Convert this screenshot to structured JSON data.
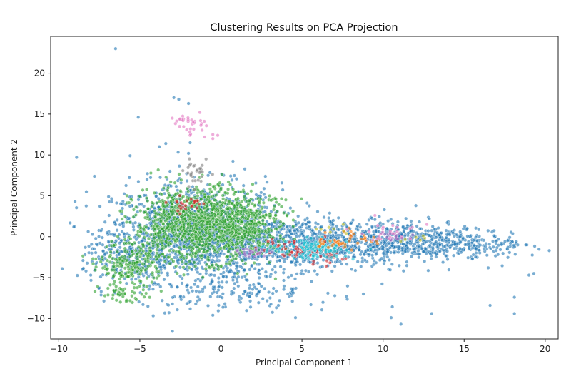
{
  "chart_data": {
    "type": "scatter",
    "title": "Clustering Results on PCA Projection",
    "xlabel": "Principal Component 1",
    "ylabel": "Principal Component 2",
    "xlim": [
      -10.5,
      20.8
    ],
    "ylim": [
      -12.5,
      24.5
    ],
    "xticks": [
      -10,
      -5,
      0,
      5,
      10,
      15,
      20
    ],
    "yticks": [
      -10,
      -5,
      0,
      5,
      10,
      15,
      20
    ],
    "grid": false,
    "legend": "none",
    "clusters": [
      {
        "color": "#1f77b4",
        "regions": [
          {
            "cx": -1.5,
            "cy": 0.5,
            "sx": 2.6,
            "sy": 3.0,
            "n": 1300
          },
          {
            "cx": 5.0,
            "cy": -0.8,
            "sx": 3.2,
            "sy": 1.5,
            "n": 800
          },
          {
            "cx": 11.0,
            "cy": -0.5,
            "sx": 2.8,
            "sy": 1.2,
            "n": 500
          },
          {
            "cx": 15.5,
            "cy": -1.0,
            "sx": 1.6,
            "sy": 0.9,
            "n": 120
          },
          {
            "cx": -5.5,
            "cy": -2.5,
            "sx": 1.5,
            "sy": 1.6,
            "n": 200
          },
          {
            "cx": 1.0,
            "cy": -6.5,
            "sx": 3.0,
            "sy": 1.2,
            "n": 160
          }
        ],
        "outliers": [
          [
            -6.5,
            23.0
          ],
          [
            -5.1,
            14.6
          ],
          [
            -2.9,
            17.0
          ],
          [
            -2.6,
            16.8
          ],
          [
            -2.0,
            16.3
          ],
          [
            -8.9,
            9.7
          ],
          [
            -5.6,
            9.9
          ],
          [
            -3.8,
            11.0
          ],
          [
            -3.4,
            11.4
          ],
          [
            -2.0,
            10.2
          ],
          [
            -1.9,
            11.5
          ],
          [
            -9.0,
            4.3
          ],
          [
            -6.9,
            2.6
          ],
          [
            -8.3,
            5.5
          ],
          [
            -7.8,
            7.4
          ],
          [
            19.3,
            -4.5
          ],
          [
            19.0,
            -4.7
          ],
          [
            18.8,
            -1.0
          ],
          [
            18.1,
            -9.4
          ],
          [
            18.1,
            -7.4
          ],
          [
            16.6,
            -8.4
          ],
          [
            13.0,
            -9.4
          ],
          [
            11.1,
            -10.7
          ],
          [
            10.5,
            -9.9
          ],
          [
            -3.2,
            -9.3
          ],
          [
            -0.5,
            -9.6
          ],
          [
            4.6,
            -9.9
          ],
          [
            17.0,
            -0.5
          ],
          [
            17.7,
            -1.3
          ],
          [
            -4.5,
            -8.5
          ]
        ]
      },
      {
        "color": "#2ca02c",
        "regions": [
          {
            "cx": -1.5,
            "cy": 1.5,
            "sx": 1.9,
            "sy": 2.2,
            "n": 1100
          },
          {
            "cx": 1.5,
            "cy": 1.5,
            "sx": 1.4,
            "sy": 1.8,
            "n": 350
          },
          {
            "cx": -5.5,
            "cy": -3.5,
            "sx": 1.0,
            "sy": 1.3,
            "n": 200
          },
          {
            "cx": -6.0,
            "cy": -7.0,
            "sx": 0.7,
            "sy": 0.5,
            "n": 40
          }
        ],
        "outliers": [
          [
            -7.7,
            -3.7
          ],
          [
            -7.9,
            -2.7
          ],
          [
            -6.2,
            -8.0
          ],
          [
            3.0,
            5.0
          ],
          [
            4.0,
            4.5
          ]
        ]
      },
      {
        "color": "#d62728",
        "regions": [
          {
            "cx": 6.0,
            "cy": -2.0,
            "sx": 1.3,
            "sy": 0.8,
            "n": 60
          },
          {
            "cx": -2.0,
            "cy": 4.0,
            "sx": 0.6,
            "sy": 0.6,
            "n": 25
          },
          {
            "cx": 4.0,
            "cy": -1.2,
            "sx": 0.8,
            "sy": 0.5,
            "n": 20
          }
        ],
        "outliers": []
      },
      {
        "color": "#17becf",
        "regions": [
          {
            "cx": 6.0,
            "cy": -1.5,
            "sx": 0.9,
            "sy": 0.6,
            "n": 130
          },
          {
            "cx": 3.2,
            "cy": -1.6,
            "sx": 0.4,
            "sy": 0.3,
            "n": 15
          }
        ],
        "outliers": []
      },
      {
        "color": "#9467bd",
        "regions": [
          {
            "cx": 2.0,
            "cy": -1.8,
            "sx": 0.5,
            "sy": 0.3,
            "n": 25
          },
          {
            "cx": 10.5,
            "cy": 0.0,
            "sx": 0.8,
            "sy": 0.3,
            "n": 20
          }
        ],
        "outliers": []
      },
      {
        "color": "#ff7f0e",
        "regions": [
          {
            "cx": 7.5,
            "cy": -0.5,
            "sx": 1.0,
            "sy": 0.6,
            "n": 35
          },
          {
            "cx": 9.0,
            "cy": 0.0,
            "sx": 0.6,
            "sy": 0.5,
            "n": 10
          }
        ],
        "outliers": []
      },
      {
        "color": "#e377c2",
        "regions": [
          {
            "cx": -2.0,
            "cy": 13.8,
            "sx": 0.6,
            "sy": 0.7,
            "n": 30
          },
          {
            "cx": 10.5,
            "cy": 0.3,
            "sx": 0.9,
            "sy": 0.5,
            "n": 25
          }
        ],
        "outliers": [
          [
            -3.0,
            14.5
          ],
          [
            -1.0,
            12.2
          ],
          [
            -0.5,
            12.5
          ],
          [
            -0.5,
            12.0
          ],
          [
            -1.3,
            15.2
          ],
          [
            9.5,
            2.6
          ],
          [
            12.7,
            1.5
          ],
          [
            -0.2,
            12.4
          ]
        ]
      },
      {
        "color": "#7f7f7f",
        "regions": [
          {
            "cx": -1.5,
            "cy": 7.8,
            "sx": 0.4,
            "sy": 0.7,
            "n": 30
          }
        ],
        "outliers": []
      },
      {
        "color": "#bcbd22",
        "regions": [
          {
            "cx": 7.0,
            "cy": 0.5,
            "sx": 0.6,
            "sy": 0.4,
            "n": 8
          },
          {
            "cx": 12.0,
            "cy": -0.2,
            "sx": 0.6,
            "sy": 0.3,
            "n": 6
          }
        ],
        "outliers": []
      }
    ]
  }
}
